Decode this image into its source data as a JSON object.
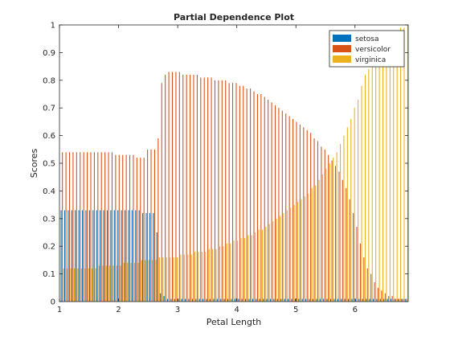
{
  "chart_data": {
    "type": "bar",
    "title": "Partial Dependence Plot",
    "xlabel": "Petal Length",
    "ylabel": "Scores",
    "xlim": [
      1,
      6.9
    ],
    "ylim": [
      0,
      1
    ],
    "xticks": [
      "1",
      "2",
      "3",
      "4",
      "5",
      "6"
    ],
    "xtick_values": [
      1,
      2,
      3,
      4,
      5,
      6
    ],
    "yticks": [
      "0",
      "0.1",
      "0.2",
      "0.3",
      "0.4",
      "0.5",
      "0.6",
      "0.7",
      "0.8",
      "0.9",
      "1"
    ],
    "ytick_values": [
      0,
      0.1,
      0.2,
      0.3,
      0.4,
      0.5,
      0.6,
      0.7,
      0.8,
      0.9,
      1
    ],
    "grid": false,
    "legend_position": "top-right",
    "x": [
      1.05,
      1.11,
      1.17,
      1.23,
      1.29,
      1.35,
      1.41,
      1.47,
      1.53,
      1.59,
      1.65,
      1.71,
      1.77,
      1.83,
      1.89,
      1.95,
      2.01,
      2.07,
      2.13,
      2.19,
      2.25,
      2.31,
      2.37,
      2.43,
      2.49,
      2.55,
      2.61,
      2.67,
      2.73,
      2.79,
      2.85,
      2.91,
      2.97,
      3.03,
      3.09,
      3.15,
      3.21,
      3.27,
      3.33,
      3.39,
      3.45,
      3.51,
      3.57,
      3.63,
      3.69,
      3.75,
      3.81,
      3.87,
      3.93,
      3.99,
      4.05,
      4.11,
      4.17,
      4.23,
      4.29,
      4.35,
      4.41,
      4.47,
      4.53,
      4.59,
      4.65,
      4.71,
      4.77,
      4.83,
      4.89,
      4.95,
      5.01,
      5.07,
      5.13,
      5.19,
      5.25,
      5.31,
      5.37,
      5.43,
      5.49,
      5.55,
      5.61,
      5.67,
      5.73,
      5.79,
      5.85,
      5.91,
      5.97,
      6.03,
      6.09,
      6.15,
      6.21,
      6.27,
      6.33,
      6.39,
      6.45,
      6.51,
      6.57,
      6.63,
      6.69,
      6.75,
      6.81,
      6.87
    ],
    "series": [
      {
        "name": "setosa",
        "color": "#0072BD",
        "values": [
          0.33,
          0.33,
          0.33,
          0.33,
          0.33,
          0.33,
          0.33,
          0.33,
          0.33,
          0.33,
          0.33,
          0.33,
          0.33,
          0.33,
          0.33,
          0.33,
          0.33,
          0.33,
          0.33,
          0.33,
          0.33,
          0.33,
          0.33,
          0.32,
          0.32,
          0.32,
          0.32,
          0.25,
          0.03,
          0.02,
          0.01,
          0.01,
          0.01,
          0.01,
          0.01,
          0.01,
          0.01,
          0.01,
          0.01,
          0.01,
          0.01,
          0.01,
          0.01,
          0.01,
          0.01,
          0.01,
          0.01,
          0.01,
          0.01,
          0.01,
          0.01,
          0.01,
          0.01,
          0.01,
          0.01,
          0.01,
          0.01,
          0.01,
          0.01,
          0.01,
          0.01,
          0.01,
          0.01,
          0.01,
          0.01,
          0.01,
          0.01,
          0.01,
          0.01,
          0.01,
          0.01,
          0.01,
          0.01,
          0.01,
          0.01,
          0.01,
          0.01,
          0.01,
          0.01,
          0.01,
          0.01,
          0.01,
          0.01,
          0.01,
          0.01,
          0.01,
          0.01,
          0.01,
          0.01,
          0.01,
          0.01,
          0.01,
          0.01,
          0.01,
          0.01,
          0.01,
          0.01,
          0.01
        ]
      },
      {
        "name": "versicolor",
        "color": "#D95319",
        "values": [
          0.54,
          0.54,
          0.54,
          0.54,
          0.54,
          0.54,
          0.54,
          0.54,
          0.54,
          0.54,
          0.54,
          0.54,
          0.54,
          0.54,
          0.54,
          0.53,
          0.53,
          0.53,
          0.53,
          0.53,
          0.53,
          0.52,
          0.52,
          0.52,
          0.55,
          0.55,
          0.55,
          0.59,
          0.79,
          0.82,
          0.83,
          0.83,
          0.83,
          0.83,
          0.82,
          0.82,
          0.82,
          0.82,
          0.82,
          0.81,
          0.81,
          0.81,
          0.81,
          0.8,
          0.8,
          0.8,
          0.8,
          0.79,
          0.79,
          0.79,
          0.78,
          0.78,
          0.77,
          0.77,
          0.76,
          0.75,
          0.75,
          0.74,
          0.73,
          0.72,
          0.71,
          0.7,
          0.69,
          0.68,
          0.67,
          0.66,
          0.65,
          0.64,
          0.63,
          0.62,
          0.61,
          0.59,
          0.58,
          0.56,
          0.55,
          0.53,
          0.51,
          0.49,
          0.47,
          0.44,
          0.41,
          0.37,
          0.32,
          0.27,
          0.21,
          0.16,
          0.12,
          0.1,
          0.07,
          0.05,
          0.04,
          0.03,
          0.02,
          0.02,
          0.01,
          0.01,
          0.01,
          0.01
        ]
      },
      {
        "name": "virginica",
        "color": "#EDB120",
        "values": [
          0.12,
          0.12,
          0.12,
          0.12,
          0.12,
          0.12,
          0.12,
          0.12,
          0.12,
          0.12,
          0.13,
          0.13,
          0.13,
          0.13,
          0.13,
          0.13,
          0.13,
          0.14,
          0.14,
          0.14,
          0.14,
          0.14,
          0.15,
          0.15,
          0.15,
          0.15,
          0.15,
          0.16,
          0.16,
          0.16,
          0.16,
          0.16,
          0.16,
          0.17,
          0.17,
          0.17,
          0.17,
          0.18,
          0.18,
          0.18,
          0.18,
          0.19,
          0.19,
          0.19,
          0.2,
          0.2,
          0.21,
          0.21,
          0.22,
          0.22,
          0.23,
          0.23,
          0.24,
          0.24,
          0.25,
          0.26,
          0.26,
          0.27,
          0.28,
          0.29,
          0.3,
          0.31,
          0.32,
          0.33,
          0.34,
          0.35,
          0.36,
          0.37,
          0.38,
          0.39,
          0.41,
          0.42,
          0.44,
          0.46,
          0.48,
          0.5,
          0.52,
          0.54,
          0.57,
          0.6,
          0.63,
          0.66,
          0.7,
          0.73,
          0.78,
          0.82,
          0.84,
          0.87,
          0.89,
          0.92,
          0.94,
          0.95,
          0.96,
          0.97,
          0.98,
          0.99,
          0.99,
          1.0
        ]
      }
    ]
  }
}
